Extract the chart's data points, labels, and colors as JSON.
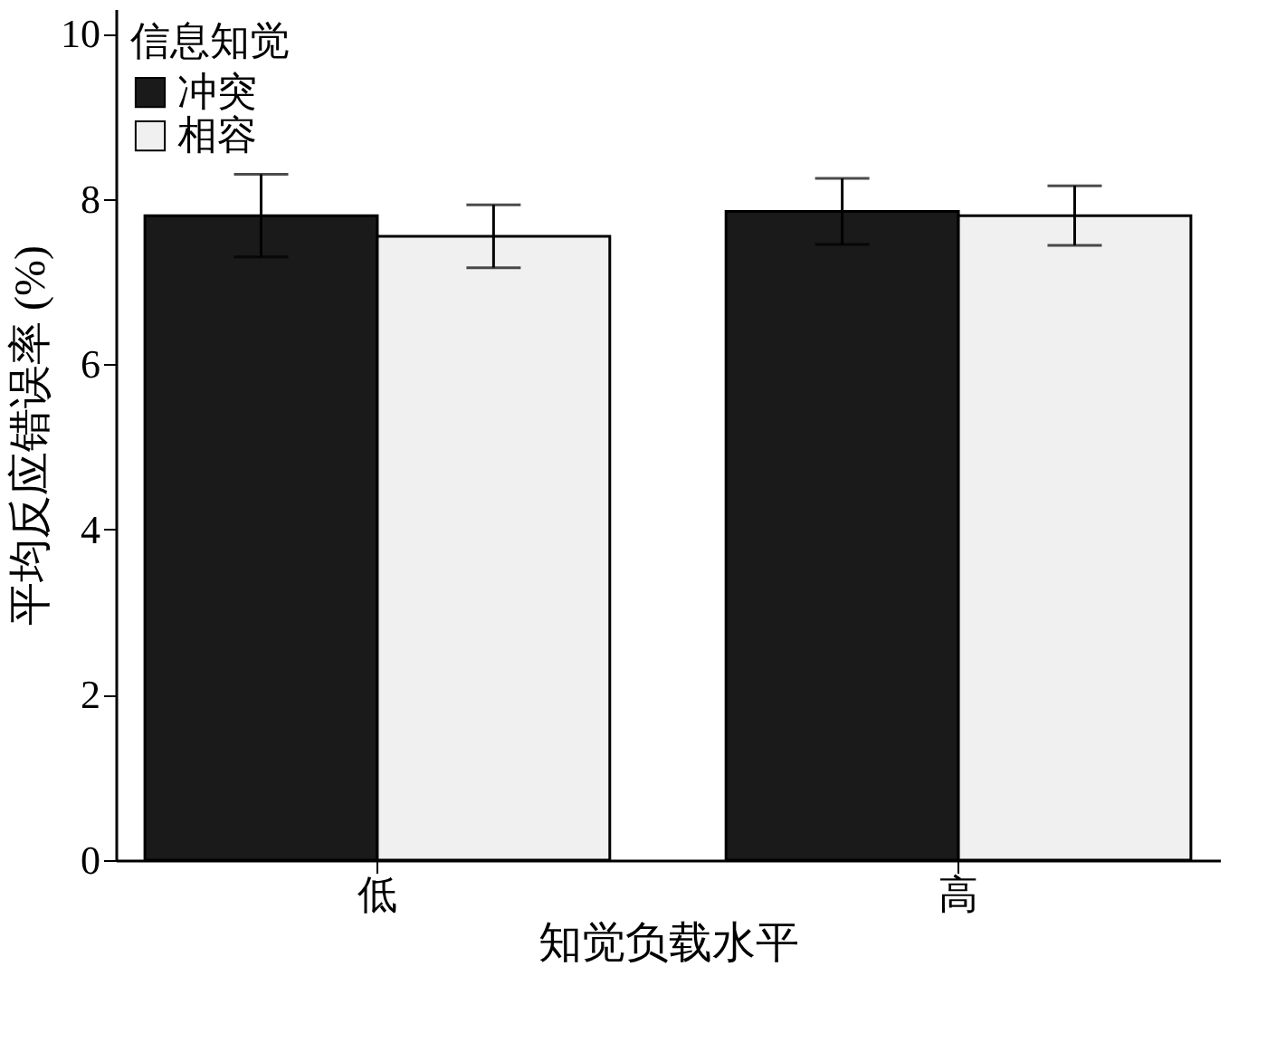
{
  "chart_data": {
    "type": "bar",
    "xlabel": "知觉负载水平",
    "ylabel": "平均反应错误率 (%)",
    "legend_title": "信息知觉",
    "categories": [
      "低",
      "高"
    ],
    "series": [
      {
        "name": "冲突",
        "color": "#1a1a1a",
        "values": [
          7.8,
          7.85
        ],
        "errors": [
          0.5,
          0.4
        ]
      },
      {
        "name": "相容",
        "color": "#f0f0f0",
        "values": [
          7.55,
          7.8
        ],
        "errors": [
          0.38,
          0.36
        ]
      }
    ],
    "ylim": [
      0,
      10.3
    ],
    "yticks": [
      0,
      2,
      4,
      6,
      8,
      10
    ],
    "grid": false,
    "legend": "top left"
  }
}
